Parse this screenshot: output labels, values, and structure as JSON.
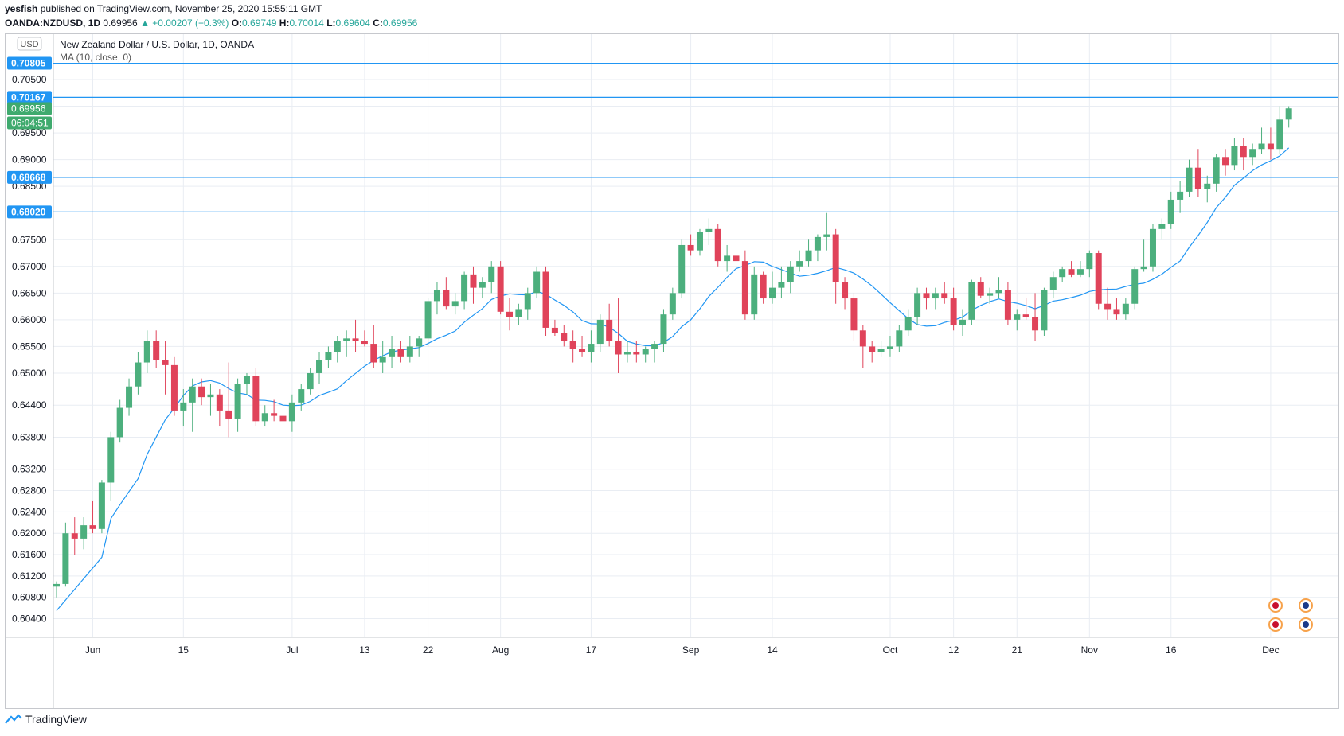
{
  "header": {
    "publisher": "yesfish",
    "published_text": " published on TradingView.com, November 25, 2020 15:55:11 GMT",
    "symbol": "OANDA:NZDUSD, 1D",
    "last": "0.69956",
    "change": "▲ +0.00207 (+0.3%)",
    "o_label": "O:",
    "o_value": "0.69749",
    "h_label": "H:",
    "h_value": "0.70014",
    "l_label": "L:",
    "l_value": "0.69604",
    "c_label": "C:",
    "c_value": "0.69956"
  },
  "footer": {
    "brand": "TradingView"
  },
  "chart_data": {
    "type": "candlestick",
    "title": "New Zealand Dollar / U.S. Dollar, 1D, OANDA",
    "currency_badge": "USD",
    "indicator": "MA (10, close, 0)",
    "ylim": [
      0.6005,
      0.7135
    ],
    "y_ticks": [
      "0.70500",
      "0.70000",
      "0.69500",
      "0.69000",
      "0.68500",
      "0.67500",
      "0.67000",
      "0.66500",
      "0.66000",
      "0.65500",
      "0.65000",
      "0.64400",
      "0.63800",
      "0.63200",
      "0.62800",
      "0.62400",
      "0.62000",
      "0.61600",
      "0.61200",
      "0.60800",
      "0.60400"
    ],
    "x_ticks": [
      {
        "label": "Jun",
        "bar": 4
      },
      {
        "label": "15",
        "bar": 14
      },
      {
        "label": "Jul",
        "bar": 26
      },
      {
        "label": "13",
        "bar": 34
      },
      {
        "label": "22",
        "bar": 41
      },
      {
        "label": "Aug",
        "bar": 49
      },
      {
        "label": "17",
        "bar": 59
      },
      {
        "label": "Sep",
        "bar": 70
      },
      {
        "label": "14",
        "bar": 79
      },
      {
        "label": "Oct",
        "bar": 92
      },
      {
        "label": "12",
        "bar": 99
      },
      {
        "label": "21",
        "bar": 106
      },
      {
        "label": "Nov",
        "bar": 114
      },
      {
        "label": "16",
        "bar": 123
      },
      {
        "label": "Dec",
        "bar": 134
      }
    ],
    "horizontal_lines": [
      "0.70805",
      "0.70167",
      "0.68668",
      "0.68020"
    ],
    "price_label": "0.69956",
    "countdown": "06:04:51",
    "colors": {
      "up": "#4caf7d",
      "down": "#e0435a",
      "ma": "#2196f3",
      "hline": "#2196f3",
      "grid": "#e9edf3"
    },
    "candles": [
      [
        0.61,
        0.611,
        0.608,
        0.6105
      ],
      [
        0.6105,
        0.622,
        0.61,
        0.62
      ],
      [
        0.62,
        0.623,
        0.616,
        0.619
      ],
      [
        0.619,
        0.623,
        0.617,
        0.6215
      ],
      [
        0.6215,
        0.626,
        0.62,
        0.6208
      ],
      [
        0.6208,
        0.63,
        0.62,
        0.6295
      ],
      [
        0.6295,
        0.639,
        0.626,
        0.638
      ],
      [
        0.638,
        0.645,
        0.637,
        0.6435
      ],
      [
        0.6435,
        0.649,
        0.642,
        0.6475
      ],
      [
        0.6475,
        0.654,
        0.646,
        0.652
      ],
      [
        0.652,
        0.658,
        0.65,
        0.656
      ],
      [
        0.656,
        0.658,
        0.651,
        0.6525
      ],
      [
        0.6525,
        0.656,
        0.646,
        0.6515
      ],
      [
        0.6515,
        0.653,
        0.642,
        0.643
      ],
      [
        0.643,
        0.647,
        0.64,
        0.6445
      ],
      [
        0.6445,
        0.649,
        0.639,
        0.6475
      ],
      [
        0.6475,
        0.649,
        0.644,
        0.6455
      ],
      [
        0.6455,
        0.648,
        0.642,
        0.646
      ],
      [
        0.646,
        0.647,
        0.64,
        0.643
      ],
      [
        0.643,
        0.652,
        0.638,
        0.6415
      ],
      [
        0.6415,
        0.649,
        0.639,
        0.648
      ],
      [
        0.648,
        0.65,
        0.646,
        0.6495
      ],
      [
        0.6495,
        0.651,
        0.64,
        0.641
      ],
      [
        0.641,
        0.644,
        0.64,
        0.6425
      ],
      [
        0.6425,
        0.645,
        0.641,
        0.642
      ],
      [
        0.642,
        0.645,
        0.64,
        0.641
      ],
      [
        0.641,
        0.646,
        0.639,
        0.6445
      ],
      [
        0.6445,
        0.648,
        0.643,
        0.647
      ],
      [
        0.647,
        0.651,
        0.646,
        0.65
      ],
      [
        0.65,
        0.654,
        0.648,
        0.6525
      ],
      [
        0.6525,
        0.655,
        0.651,
        0.654
      ],
      [
        0.654,
        0.657,
        0.652,
        0.656
      ],
      [
        0.656,
        0.658,
        0.653,
        0.6565
      ],
      [
        0.6565,
        0.66,
        0.654,
        0.656
      ],
      [
        0.656,
        0.658,
        0.655,
        0.6555
      ],
      [
        0.6555,
        0.659,
        0.651,
        0.652
      ],
      [
        0.652,
        0.656,
        0.65,
        0.653
      ],
      [
        0.653,
        0.657,
        0.651,
        0.6545
      ],
      [
        0.6545,
        0.656,
        0.652,
        0.653
      ],
      [
        0.653,
        0.657,
        0.652,
        0.655
      ],
      [
        0.655,
        0.657,
        0.653,
        0.6565
      ],
      [
        0.6565,
        0.664,
        0.655,
        0.6635
      ],
      [
        0.6635,
        0.667,
        0.661,
        0.6655
      ],
      [
        0.6655,
        0.668,
        0.662,
        0.6625
      ],
      [
        0.6625,
        0.665,
        0.661,
        0.6635
      ],
      [
        0.6635,
        0.669,
        0.662,
        0.6685
      ],
      [
        0.6685,
        0.67,
        0.663,
        0.666
      ],
      [
        0.666,
        0.668,
        0.664,
        0.667
      ],
      [
        0.667,
        0.671,
        0.665,
        0.67
      ],
      [
        0.67,
        0.671,
        0.661,
        0.6615
      ],
      [
        0.6615,
        0.664,
        0.658,
        0.6605
      ],
      [
        0.6605,
        0.663,
        0.659,
        0.662
      ],
      [
        0.662,
        0.666,
        0.66,
        0.665
      ],
      [
        0.665,
        0.67,
        0.664,
        0.669
      ],
      [
        0.669,
        0.67,
        0.657,
        0.6585
      ],
      [
        0.6585,
        0.66,
        0.657,
        0.6575
      ],
      [
        0.6575,
        0.659,
        0.655,
        0.656
      ],
      [
        0.656,
        0.658,
        0.652,
        0.6545
      ],
      [
        0.6545,
        0.657,
        0.653,
        0.654
      ],
      [
        0.654,
        0.658,
        0.652,
        0.6555
      ],
      [
        0.6555,
        0.661,
        0.654,
        0.66
      ],
      [
        0.66,
        0.663,
        0.655,
        0.656
      ],
      [
        0.656,
        0.664,
        0.65,
        0.6535
      ],
      [
        0.6535,
        0.656,
        0.652,
        0.654
      ],
      [
        0.654,
        0.656,
        0.652,
        0.6535
      ],
      [
        0.6535,
        0.655,
        0.652,
        0.6545
      ],
      [
        0.6545,
        0.656,
        0.652,
        0.6555
      ],
      [
        0.6555,
        0.662,
        0.654,
        0.661
      ],
      [
        0.661,
        0.666,
        0.66,
        0.665
      ],
      [
        0.665,
        0.675,
        0.664,
        0.674
      ],
      [
        0.674,
        0.676,
        0.672,
        0.673
      ],
      [
        0.673,
        0.677,
        0.672,
        0.6765
      ],
      [
        0.6765,
        0.679,
        0.674,
        0.677
      ],
      [
        0.677,
        0.678,
        0.67,
        0.671
      ],
      [
        0.671,
        0.674,
        0.669,
        0.672
      ],
      [
        0.672,
        0.674,
        0.67,
        0.671
      ],
      [
        0.671,
        0.673,
        0.66,
        0.661
      ],
      [
        0.661,
        0.67,
        0.66,
        0.6685
      ],
      [
        0.6685,
        0.669,
        0.663,
        0.664
      ],
      [
        0.664,
        0.669,
        0.663,
        0.666
      ],
      [
        0.666,
        0.67,
        0.664,
        0.667
      ],
      [
        0.667,
        0.671,
        0.665,
        0.67
      ],
      [
        0.67,
        0.673,
        0.669,
        0.671
      ],
      [
        0.671,
        0.675,
        0.67,
        0.673
      ],
      [
        0.673,
        0.676,
        0.671,
        0.6755
      ],
      [
        0.6755,
        0.68,
        0.673,
        0.676
      ],
      [
        0.676,
        0.677,
        0.663,
        0.667
      ],
      [
        0.667,
        0.668,
        0.662,
        0.664
      ],
      [
        0.664,
        0.665,
        0.656,
        0.658
      ],
      [
        0.658,
        0.659,
        0.651,
        0.655
      ],
      [
        0.655,
        0.656,
        0.652,
        0.654
      ],
      [
        0.654,
        0.656,
        0.653,
        0.6545
      ],
      [
        0.6545,
        0.657,
        0.653,
        0.655
      ],
      [
        0.655,
        0.659,
        0.654,
        0.658
      ],
      [
        0.658,
        0.662,
        0.657,
        0.6605
      ],
      [
        0.6605,
        0.666,
        0.659,
        0.665
      ],
      [
        0.665,
        0.666,
        0.662,
        0.664
      ],
      [
        0.664,
        0.666,
        0.662,
        0.665
      ],
      [
        0.665,
        0.667,
        0.663,
        0.664
      ],
      [
        0.664,
        0.666,
        0.658,
        0.659
      ],
      [
        0.659,
        0.662,
        0.657,
        0.66
      ],
      [
        0.66,
        0.6675,
        0.659,
        0.667
      ],
      [
        0.667,
        0.668,
        0.664,
        0.6645
      ],
      [
        0.6645,
        0.666,
        0.663,
        0.665
      ],
      [
        0.665,
        0.668,
        0.664,
        0.6655
      ],
      [
        0.6655,
        0.667,
        0.659,
        0.66
      ],
      [
        0.66,
        0.662,
        0.658,
        0.661
      ],
      [
        0.661,
        0.664,
        0.66,
        0.6605
      ],
      [
        0.6605,
        0.665,
        0.656,
        0.658
      ],
      [
        0.658,
        0.666,
        0.657,
        0.6655
      ],
      [
        0.6655,
        0.669,
        0.664,
        0.668
      ],
      [
        0.668,
        0.67,
        0.667,
        0.6695
      ],
      [
        0.6695,
        0.671,
        0.668,
        0.6685
      ],
      [
        0.6685,
        0.671,
        0.668,
        0.6695
      ],
      [
        0.6695,
        0.673,
        0.668,
        0.6725
      ],
      [
        0.6725,
        0.673,
        0.662,
        0.663
      ],
      [
        0.663,
        0.666,
        0.66,
        0.662
      ],
      [
        0.662,
        0.664,
        0.66,
        0.661
      ],
      [
        0.661,
        0.664,
        0.66,
        0.663
      ],
      [
        0.663,
        0.67,
        0.662,
        0.6695
      ],
      [
        0.6695,
        0.675,
        0.669,
        0.67
      ],
      [
        0.67,
        0.678,
        0.669,
        0.677
      ],
      [
        0.677,
        0.679,
        0.675,
        0.678
      ],
      [
        0.678,
        0.684,
        0.677,
        0.6825
      ],
      [
        0.6825,
        0.686,
        0.68,
        0.684
      ],
      [
        0.684,
        0.69,
        0.683,
        0.6885
      ],
      [
        0.6885,
        0.692,
        0.683,
        0.6845
      ],
      [
        0.6845,
        0.687,
        0.682,
        0.6855
      ],
      [
        0.6855,
        0.691,
        0.684,
        0.6905
      ],
      [
        0.6905,
        0.692,
        0.687,
        0.689
      ],
      [
        0.689,
        0.694,
        0.688,
        0.6925
      ],
      [
        0.6925,
        0.694,
        0.688,
        0.6905
      ],
      [
        0.6905,
        0.693,
        0.689,
        0.692
      ],
      [
        0.692,
        0.696,
        0.691,
        0.693
      ],
      [
        0.693,
        0.696,
        0.69,
        0.692
      ],
      [
        0.692,
        0.7,
        0.691,
        0.6975
      ],
      [
        0.6975,
        0.7,
        0.696,
        0.6996
      ]
    ]
  }
}
